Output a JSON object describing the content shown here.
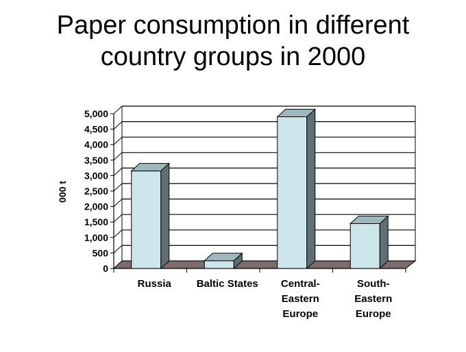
{
  "chart_data": {
    "type": "bar",
    "title_lines": [
      "Paper consumption in different",
      "country groups in 2000"
    ],
    "xlabel": "",
    "ylabel": "000 t",
    "ylim": [
      0,
      5000
    ],
    "yticks": [
      "0",
      "500",
      "1,000",
      "1,500",
      "2,000",
      "2,500",
      "3,000",
      "3,500",
      "4,000",
      "4,500",
      "5,000"
    ],
    "categories": [
      [
        "Russia"
      ],
      [
        "Baltic States"
      ],
      [
        "Central-",
        "Eastern",
        "Europe"
      ],
      [
        "South-",
        "Eastern",
        "Europe"
      ]
    ],
    "values": [
      3150,
      250,
      4900,
      1450
    ],
    "grid": true,
    "colors": {
      "bar_front": "#cde6ec",
      "bar_side": "#5e6e72",
      "bar_top": "#9fb8bd",
      "floor": "#7d6c6c"
    }
  }
}
